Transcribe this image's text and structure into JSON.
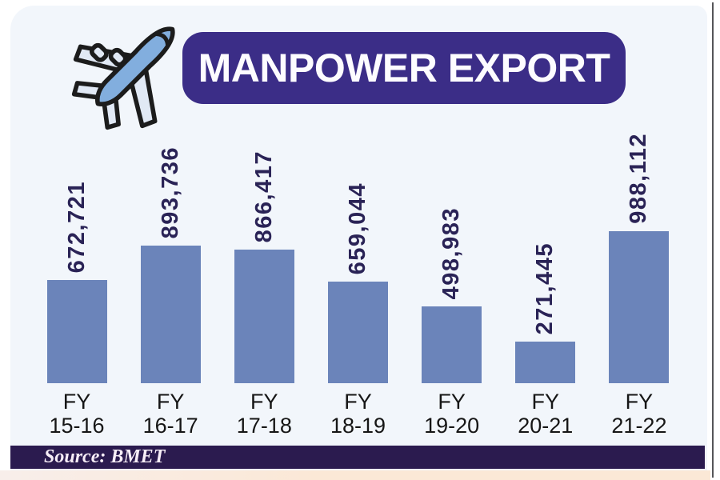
{
  "page": {
    "title_banner": "MANPOWER EXPORT",
    "source_label": "Source: BMET"
  },
  "icons": {
    "airplane": "airplane-icon"
  },
  "colors": {
    "banner_bg": "#3b2d87",
    "bar_fill": "#6b84ba",
    "value_text": "#2a2356",
    "category_text": "#161616",
    "source_bar_bg": "#2b1b4f",
    "source_text": "#f7eef7",
    "card_bg": "#f2f6fb",
    "bottom_strip": "#fbe8d6"
  },
  "chart_data": {
    "type": "bar",
    "title": "MANPOWER EXPORT",
    "categories": [
      "FY 15-16",
      "FY 16-17",
      "FY 17-18",
      "FY 18-19",
      "FY 19-20",
      "FY 20-21",
      "FY 21-22"
    ],
    "values": [
      672721,
      893736,
      866417,
      659044,
      498983,
      271445,
      988112
    ],
    "value_labels": [
      "672,721",
      "893,736",
      "866,417",
      "659,044",
      "498,983",
      "271,445",
      "988,112"
    ],
    "xlabel": "",
    "ylabel": "",
    "ylim": [
      0,
      1000000
    ],
    "grid": false,
    "legend": "none",
    "value_label_rotation": -90,
    "bar_color": "#6b84ba",
    "source": "Source: BMET"
  }
}
